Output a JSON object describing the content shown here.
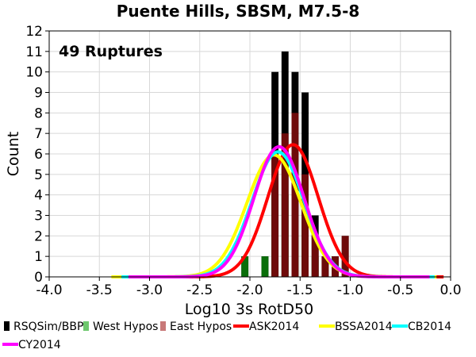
{
  "chart_data": {
    "type": "bar",
    "title": "Puente Hills, SBSM, M7.5-8",
    "xlabel": "Log10 3s RotD50",
    "ylabel": "Count",
    "annotation": "49 Ruptures",
    "xlim": [
      -4.0,
      0.0
    ],
    "ylim": [
      0,
      12
    ],
    "x_ticks": [
      "-4.0",
      "-3.5",
      "-3.0",
      "-2.5",
      "-2.0",
      "-1.5",
      "-1.0",
      "-0.5",
      "0.0"
    ],
    "y_ticks": [
      "0",
      "1",
      "2",
      "3",
      "4",
      "5",
      "6",
      "7",
      "8",
      "9",
      "10",
      "11",
      "12"
    ],
    "grid": true,
    "bin_width": 0.1,
    "bin_centers": [
      -2.05,
      -1.85,
      -1.75,
      -1.65,
      -1.55,
      -1.45,
      -1.35,
      -1.25,
      -1.15,
      -1.05
    ],
    "series": [
      {
        "name": "RSQSim/BBP",
        "color": "#000000",
        "values": [
          1,
          1,
          10,
          11,
          10,
          9,
          3,
          1,
          1,
          2
        ]
      },
      {
        "name": "West Hypos",
        "color": "#0a6e0a",
        "values": [
          1,
          1,
          4,
          4,
          2,
          4,
          1,
          0,
          0,
          0
        ]
      },
      {
        "name": "East Hypos",
        "color": "#6e0a0a",
        "values": [
          0,
          0,
          6,
          7,
          8,
          5,
          2,
          1,
          1,
          2
        ]
      }
    ],
    "curves": [
      {
        "name": "ASK2014",
        "color": "#ff0000",
        "mean": -1.57,
        "sigma": 0.25,
        "peak": 6.45
      },
      {
        "name": "BSSA2014",
        "color": "#ffff00",
        "mean": -1.76,
        "sigma": 0.27,
        "peak": 5.95
      },
      {
        "name": "CB2014",
        "color": "#00ffff",
        "mean": -1.72,
        "sigma": 0.26,
        "peak": 6.1
      },
      {
        "name": "CY2014",
        "color": "#ff00ff",
        "mean": -1.71,
        "sigma": 0.25,
        "peak": 6.35
      }
    ],
    "legend": [
      {
        "label": "RSQSim/BBP",
        "color": "#000000",
        "kind": "box"
      },
      {
        "label": "West Hypos",
        "color": "#6ec86e",
        "kind": "box"
      },
      {
        "label": "East Hypos",
        "color": "#c87878",
        "kind": "box"
      },
      {
        "label": "ASK2014",
        "color": "#ff0000",
        "kind": "line"
      },
      {
        "label": "BSSA2014",
        "color": "#ffff00",
        "kind": "line"
      },
      {
        "label": "CB2014",
        "color": "#00ffff",
        "kind": "line"
      },
      {
        "label": "CY2014",
        "color": "#ff00ff",
        "kind": "line"
      }
    ],
    "legend_position": "bottom"
  }
}
